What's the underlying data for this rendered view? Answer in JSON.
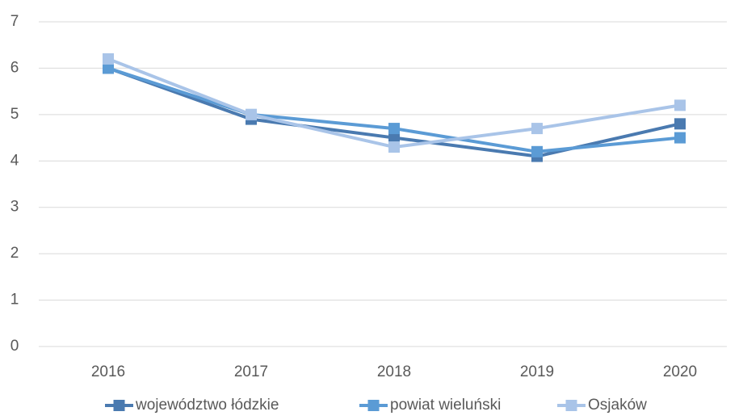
{
  "chart_data": {
    "type": "line",
    "categories": [
      "2016",
      "2017",
      "2018",
      "2019",
      "2020"
    ],
    "series": [
      {
        "name": "województwo łódzkie",
        "color": "#4a7ab0",
        "values": [
          6.0,
          4.9,
          4.5,
          4.1,
          4.8
        ]
      },
      {
        "name": "powiat wieluński",
        "color": "#5b9bd5",
        "values": [
          6.0,
          5.0,
          4.7,
          4.2,
          4.5
        ]
      },
      {
        "name": "Osjaków",
        "color": "#a9c4e8",
        "values": [
          6.2,
          5.0,
          4.3,
          4.7,
          5.2
        ]
      }
    ],
    "ylim": [
      0,
      7
    ],
    "yticks": [
      0,
      1,
      2,
      3,
      4,
      5,
      6,
      7
    ],
    "grid": true,
    "legend": "bottom"
  }
}
